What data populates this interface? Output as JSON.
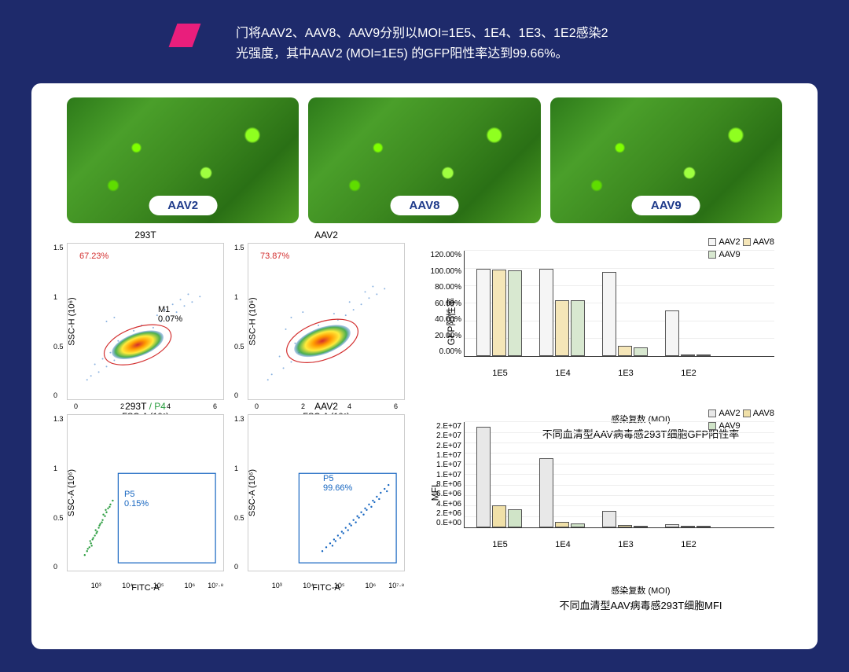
{
  "header": {
    "line1": "门将AAV2、AAV8、AAV9分别以MOI=1E5、1E4、1E3、1E2感染2",
    "line2": "光强度，其中AAV2 (MOI=1E5) 的GFP阳性率达到99.66%。"
  },
  "micrographs": [
    {
      "label": "AAV2"
    },
    {
      "label": "AAV8"
    },
    {
      "label": "AAV9"
    }
  ],
  "scatter_plots": {
    "p293T": {
      "title": "293T",
      "gate_pct": "67.23%",
      "m1_pct": "0.07%",
      "ylabel": "SSC-H (10⁶)",
      "xlabel": "FSC-A (10⁶)",
      "xticks": [
        "0",
        "2",
        "4",
        "6"
      ],
      "yticks": [
        "0",
        "0.5",
        "1",
        "1.5"
      ]
    },
    "pAAV2": {
      "title": "AAV2",
      "gate_pct": "73.87%",
      "ylabel": "SSC-H (10⁶)",
      "xlabel": "FSC-A (10⁶)",
      "xticks": [
        "0",
        "2",
        "4",
        "6"
      ],
      "yticks": [
        "0",
        "0.5",
        "1",
        "1.5"
      ]
    },
    "p293T_P4": {
      "title": "293T",
      "title_extra": "/ P4",
      "p5_pct": "0.15%",
      "ylabel": "SSC-A (10⁶)",
      "xlabel": "FITC-A",
      "xticks": [
        "10³",
        "10⁴",
        "10⁵",
        "10⁶",
        "10⁷·⁸"
      ],
      "yticks": [
        "0",
        "0.5",
        "1",
        "1.3"
      ]
    },
    "pAAV2_P4": {
      "title": "AAV2",
      "p5_pct": "99.66%",
      "ylabel": "SSC-A (10⁶)",
      "xlabel": "FITC-A",
      "xticks": [
        "10³",
        "10⁴",
        "10⁵",
        "10⁶",
        "10⁷·⁸"
      ],
      "yticks": [
        "0",
        "0.5",
        "1",
        "1.3"
      ]
    }
  },
  "bar_chart_gfp": {
    "type": "bar",
    "legend": [
      "AAV2",
      "AAV8",
      "AAV9"
    ],
    "colors": {
      "AAV2": "#f5f5f5",
      "AAV8": "#f5e6b8",
      "AAV9": "#d8e8d0"
    },
    "categories": [
      "1E5",
      "1E4",
      "1E3",
      "1E2"
    ],
    "values": {
      "AAV2": [
        99,
        99,
        95,
        52
      ],
      "AAV8": [
        98,
        63,
        12,
        2
      ],
      "AAV9": [
        97,
        63,
        10,
        2
      ]
    },
    "ylabel": "GFP阳性率",
    "ymax": 120,
    "yticks": [
      "0.00%",
      "20.00%",
      "40.00%",
      "60.00%",
      "80.00%",
      "100.00%",
      "120.00%"
    ],
    "xlabel": "感染复数 (MOI)",
    "caption": "不同血清型AAV病毒感293T细胞GFP阳性率"
  },
  "bar_chart_mfi": {
    "type": "bar",
    "legend": [
      "AAV2",
      "AAV8",
      "AAV9"
    ],
    "colors": {
      "AAV2": "#e8e8e8",
      "AAV8": "#f0e0a8",
      "AAV9": "#d0e4c8"
    },
    "categories": [
      "1E5",
      "1E4",
      "1E3",
      "1E2"
    ],
    "values": {
      "AAV2": [
        19000000.0,
        13000000.0,
        3200000.0,
        600000.0
      ],
      "AAV8": [
        4200000.0,
        1000000.0,
        500000.0,
        300000.0
      ],
      "AAV9": [
        3400000.0,
        800000.0,
        400000.0,
        300000.0
      ]
    },
    "ylabel": "MFI",
    "ymax": 20000000.0,
    "yticks": [
      "0.E+00",
      "2.E+06",
      "4.E+06",
      "6.E+06",
      "8.E+06",
      "1.E+07",
      "1.E+07",
      "1.E+07",
      "2.E+07",
      "2.E+07",
      "2.E+07"
    ],
    "xlabel": "感染复数 (MOI)",
    "caption": "不同血清型AAV病毒感293T细胞MFI"
  }
}
